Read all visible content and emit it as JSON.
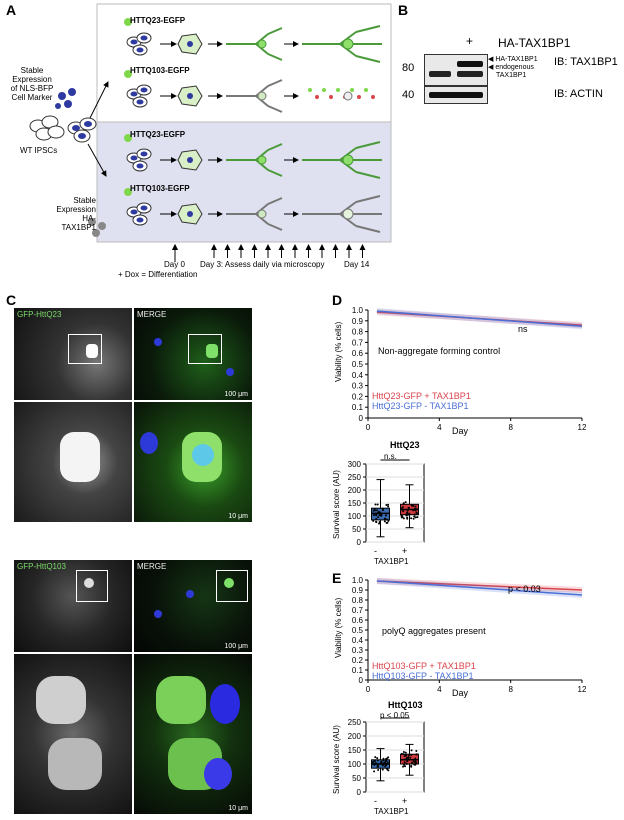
{
  "panels": {
    "a": "A",
    "b": "B",
    "c": "C",
    "d": "D",
    "e": "E"
  },
  "panel_a": {
    "stable_bfp": [
      "Stable",
      "Expression",
      "of NLS-BFP",
      "Cell Marker"
    ],
    "wt": "WT IPSCs",
    "stable_tax": [
      "Stable",
      "Expression",
      "HA-TAX1BP1"
    ],
    "q23": "HTTQ23-EGFP",
    "q103": "HTTQ103-EGFP",
    "timeline": {
      "day0": "Day 0",
      "dox": "+ Dox = Differentiation",
      "day3": "Day 3: Assess daily via microscopy",
      "day14": "Day 14"
    },
    "colors": {
      "top_bg": "#ffffff",
      "bottom_bg": "#dfe1f0",
      "neuron": "#4a9a3a",
      "nucleus": "#2e3aa0",
      "gfp": "#7fd84a"
    }
  },
  "panel_b": {
    "plus": "+",
    "ha": "HA-TAX1BP1",
    "band_ha": "HA-TAX1BP1",
    "band_endo": [
      "endogenous",
      "TAX1BP1"
    ],
    "mw80": "80",
    "mw40": "40",
    "ib_tax": "IB: TAX1BP1",
    "ib_actin": "IB: ACTIN"
  },
  "panel_c": {
    "gfp_q23": "GFP-HttQ23",
    "merge": "MERGE",
    "gfp_q103": "GFP-HttQ103",
    "s100": "100 μm",
    "s10": "10 μm"
  },
  "panel_d": {
    "ylabel": "Viability (% cells)",
    "xlabel": "Day",
    "annotation": "ns",
    "note": "Non-aggregate forming control",
    "legend_red": "HttQ23-GFP + TAX1BP1",
    "legend_blue": "HttQ23-GFP - TAX1BP1",
    "box_title": "HttQ23",
    "box_sig": "n.s.",
    "box_ylabel": "Survival score (AU)",
    "box_x": [
      "-",
      "+"
    ],
    "box_xlabel": "TAX1BP1"
  },
  "panel_e": {
    "ylabel": "Viability (% cells)",
    "xlabel": "Day",
    "annotation": "p < 0.03",
    "note": "polyQ aggregates present",
    "legend_red": "HttQ103-GFP + TAX1BP1",
    "legend_blue": "HttQ103-GFP - TAX1BP1",
    "box_title": "HttQ103",
    "box_sig": "p < 0.05",
    "box_ylabel": "Survival score (AU)",
    "box_x": [
      "-",
      "+"
    ],
    "box_xlabel": "TAX1BP1"
  },
  "chart_data": [
    {
      "type": "line",
      "title": "",
      "xlabel": "Day",
      "ylabel": "Viability (% cells)",
      "xlim": [
        0,
        12
      ],
      "ylim": [
        0,
        1.0
      ],
      "x_ticks": [
        0,
        4,
        8,
        12
      ],
      "y_ticks": [
        0,
        0.1,
        0.2,
        0.3,
        0.4,
        0.5,
        0.6,
        0.7,
        0.8,
        0.9,
        1.0
      ],
      "series": [
        {
          "name": "HttQ23-GFP + TAX1BP1",
          "color": "#d9434b",
          "x": [
            0.5,
            12
          ],
          "y": [
            0.98,
            0.86
          ]
        },
        {
          "name": "HttQ23-GFP - TAX1BP1",
          "color": "#4a6fd6",
          "x": [
            0.5,
            12
          ],
          "y": [
            0.99,
            0.85
          ]
        }
      ]
    },
    {
      "type": "box",
      "title": "HttQ23",
      "ylabel": "Survival score (AU)",
      "xlabel": "TAX1BP1",
      "categories": [
        "-",
        "+"
      ],
      "ylim": [
        0,
        300
      ],
      "y_ticks": [
        0,
        50,
        100,
        150,
        200,
        250,
        300
      ],
      "boxes": [
        {
          "category": "-",
          "color": "#3a6bb0",
          "whisker_low": 20,
          "q1": 85,
          "median": 110,
          "q3": 130,
          "whisker_high": 240
        },
        {
          "category": "+",
          "color": "#d0393e",
          "whisker_low": 55,
          "q1": 105,
          "median": 125,
          "q3": 145,
          "whisker_high": 220
        }
      ]
    },
    {
      "type": "line",
      "title": "",
      "xlabel": "Day",
      "ylabel": "Viability (% cells)",
      "xlim": [
        0,
        12
      ],
      "ylim": [
        0,
        1.0
      ],
      "x_ticks": [
        0,
        4,
        8,
        12
      ],
      "y_ticks": [
        0,
        0.1,
        0.2,
        0.3,
        0.4,
        0.5,
        0.6,
        0.7,
        0.8,
        0.9,
        1.0
      ],
      "series": [
        {
          "name": "HttQ103-GFP + TAX1BP1",
          "color": "#d9434b",
          "x": [
            0.5,
            12
          ],
          "y": [
            0.99,
            0.9
          ]
        },
        {
          "name": "HttQ103-GFP - TAX1BP1",
          "color": "#4a6fd6",
          "x": [
            0.5,
            12
          ],
          "y": [
            0.99,
            0.85
          ]
        }
      ]
    },
    {
      "type": "box",
      "title": "HttQ103",
      "ylabel": "Survival score (AU)",
      "xlabel": "TAX1BP1",
      "categories": [
        "-",
        "+"
      ],
      "ylim": [
        0,
        250
      ],
      "y_ticks": [
        0,
        50,
        100,
        150,
        200,
        250
      ],
      "boxes": [
        {
          "category": "-",
          "color": "#3a6bb0",
          "whisker_low": 40,
          "q1": 85,
          "median": 100,
          "q3": 115,
          "whisker_high": 155
        },
        {
          "category": "+",
          "color": "#d0393e",
          "whisker_low": 60,
          "q1": 100,
          "median": 115,
          "q3": 135,
          "whisker_high": 170
        }
      ]
    }
  ]
}
